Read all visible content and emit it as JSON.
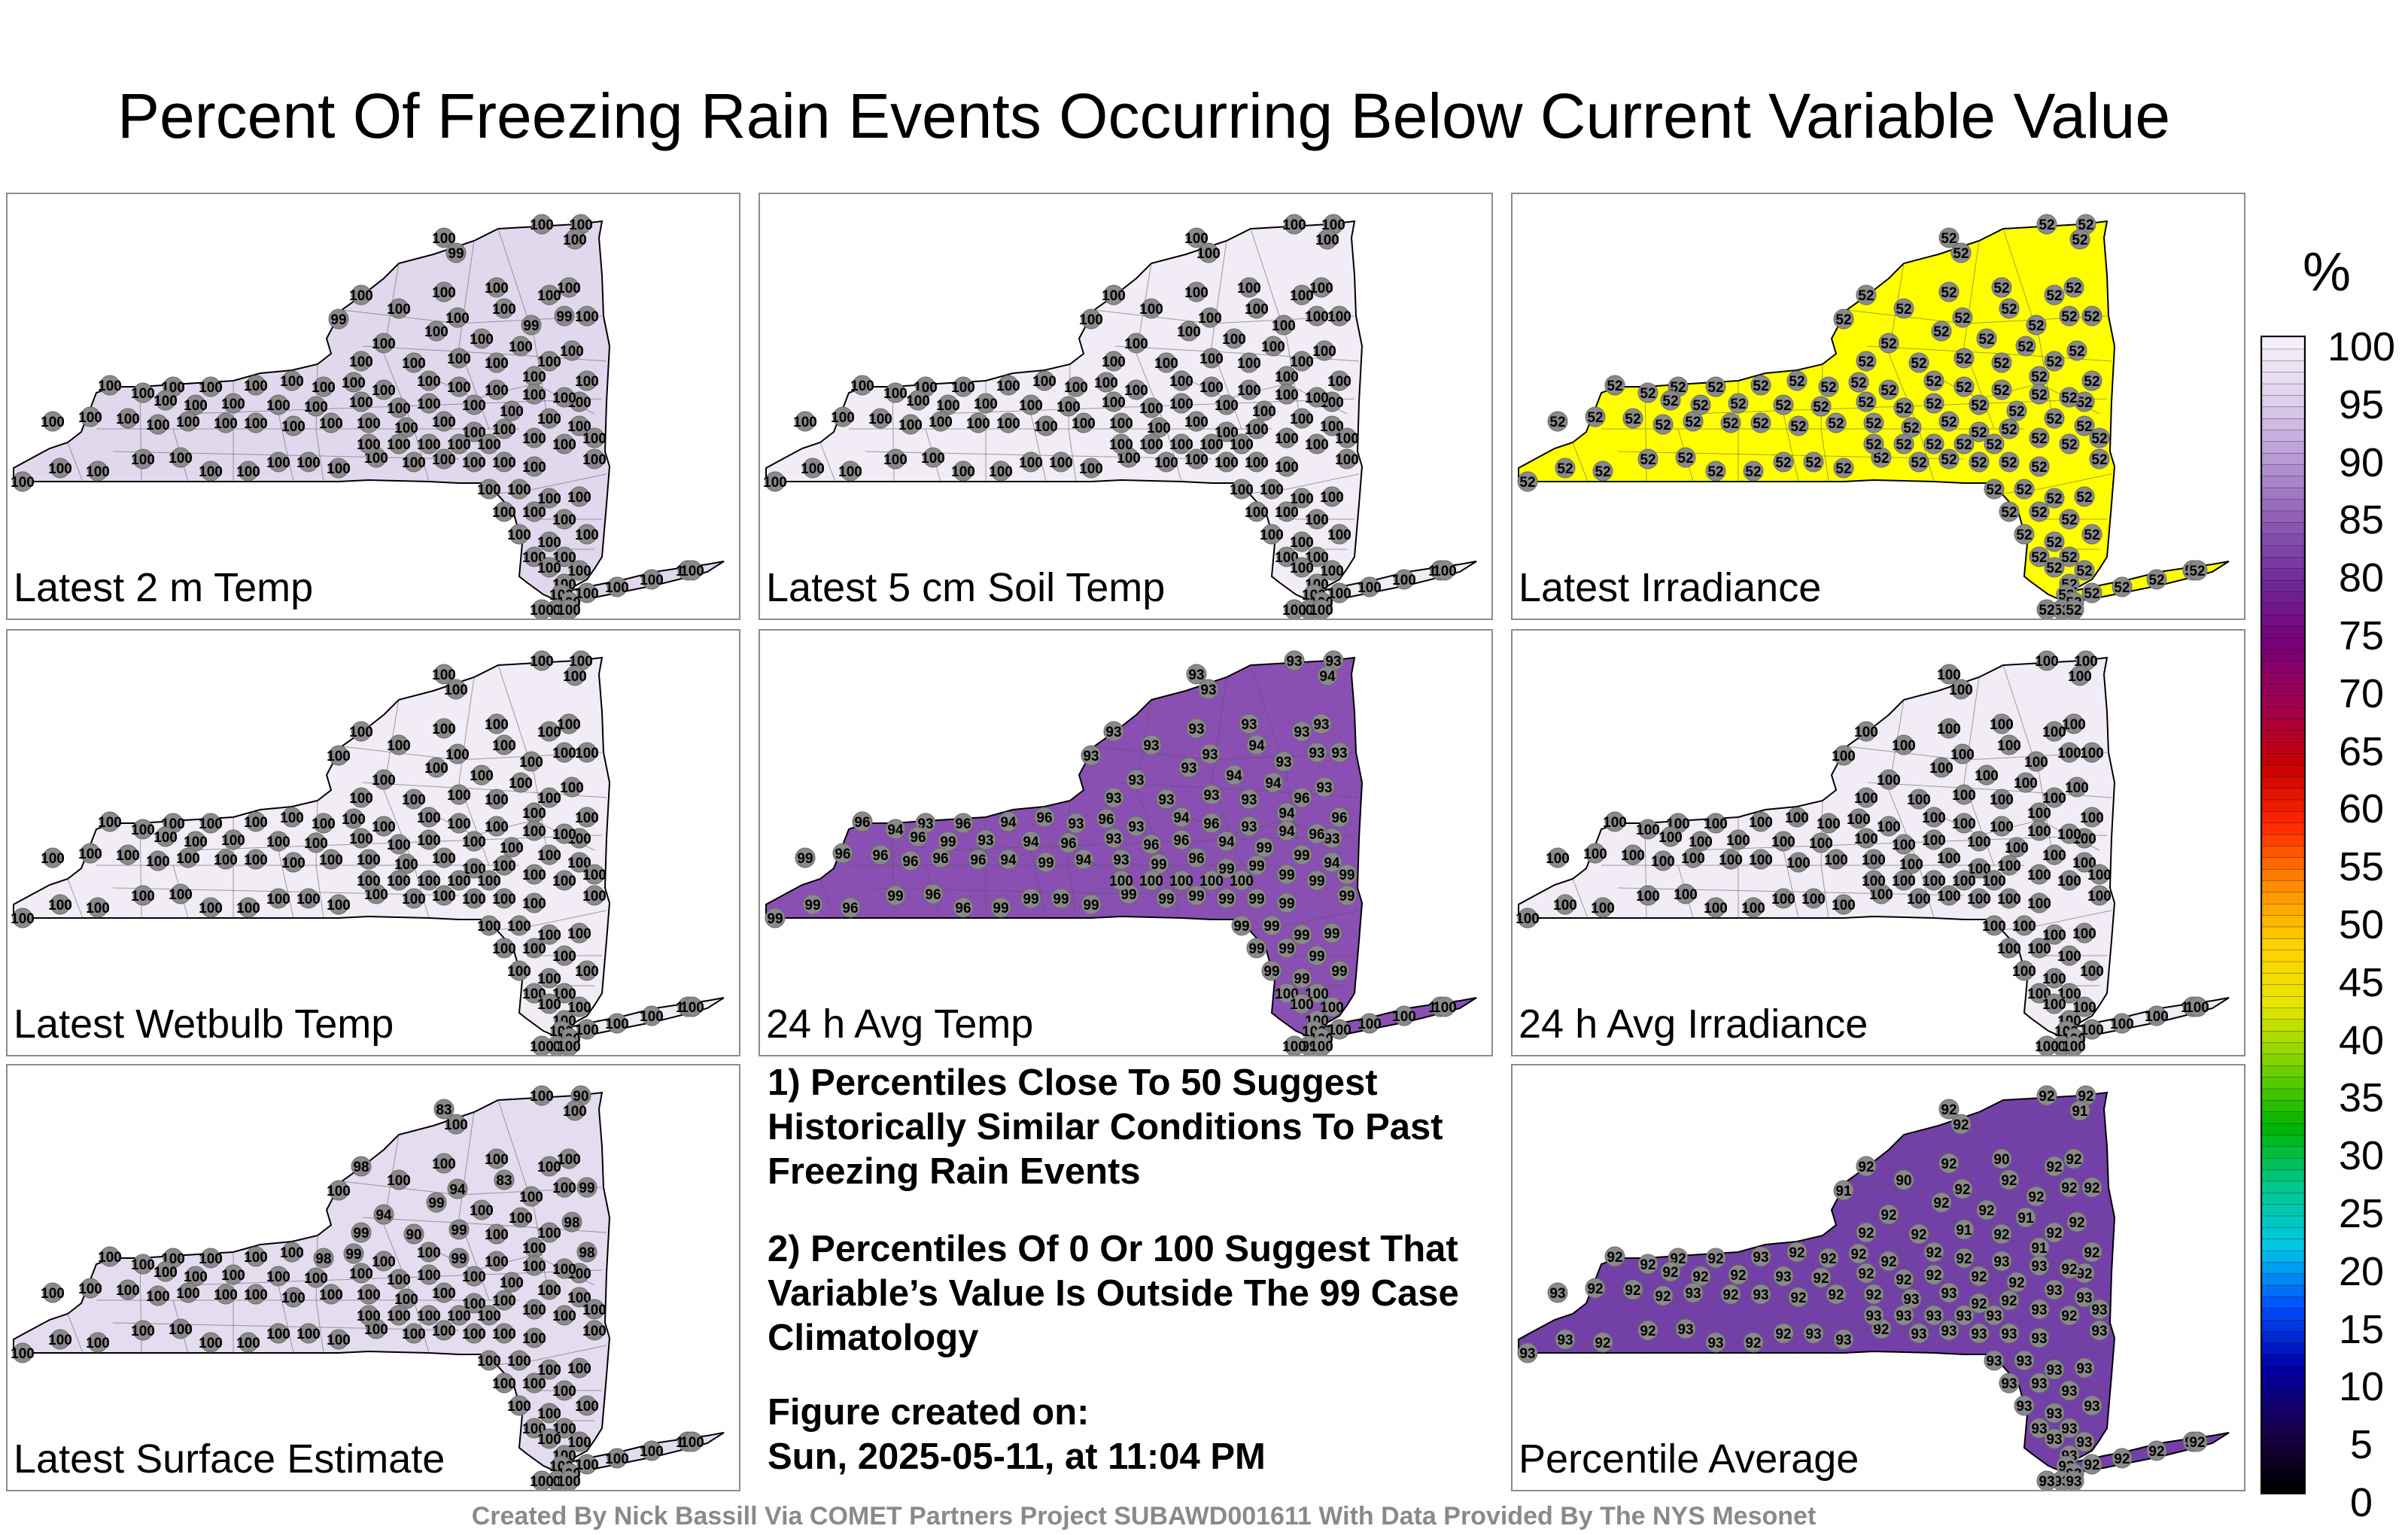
{
  "title": "Percent Of Freezing Rain Events Occurring Below Current Variable Value",
  "panels": [
    {
      "label": "Latest 2 m Temp",
      "fill": "#e2d8ee",
      "values": [
        "100",
        "100",
        "100",
        "100",
        "99",
        "100",
        "100",
        "100",
        "100",
        "100",
        "100",
        "99",
        "100",
        "100",
        "99",
        "99",
        "100",
        "100",
        "100",
        "100",
        "100",
        "100",
        "100",
        "100",
        "100",
        "100",
        "100",
        "100",
        "100",
        "100",
        "100",
        "100",
        "100",
        "100",
        "100",
        "100",
        "100",
        "100",
        "100",
        "100",
        "100",
        "100",
        "100",
        "100",
        "100",
        "100",
        "100",
        "100",
        "100",
        "100",
        "100",
        "100",
        "100",
        "100",
        "100",
        "100",
        "100",
        "100",
        "100",
        "100",
        "100",
        "100",
        "100",
        "100",
        "100",
        "100",
        "100",
        "100",
        "100",
        "100",
        "100",
        "100",
        "100",
        "100",
        "100",
        "100",
        "100",
        "100",
        "100",
        "100",
        "100",
        "100",
        "100",
        "100",
        "100",
        "100",
        "100",
        "100",
        "100",
        "100",
        "100",
        "100",
        "100",
        "100",
        "100",
        "100",
        "100",
        "100",
        "100",
        "100",
        "100",
        "100",
        "100",
        "100",
        "100",
        "100",
        "100",
        "100",
        "100",
        "100",
        "100",
        "100",
        "100",
        "100",
        "100",
        "100",
        "100",
        "100",
        "100",
        "100"
      ]
    },
    {
      "label": "Latest 5 cm Soil Temp",
      "fill": "#f1ecf6",
      "values": [
        "100",
        "100",
        "100",
        "100",
        "100",
        "100",
        "100",
        "100",
        "100",
        "100",
        "100",
        "100",
        "100",
        "100",
        "100",
        "100",
        "100",
        "100",
        "100",
        "100",
        "100",
        "100",
        "100",
        "100",
        "100",
        "100",
        "100",
        "100",
        "100",
        "100",
        "100",
        "100",
        "100",
        "100",
        "100",
        "100",
        "100",
        "100",
        "100",
        "100",
        "100",
        "100",
        "100",
        "100",
        "100",
        "100",
        "100",
        "100",
        "100",
        "100",
        "100",
        "100",
        "100",
        "100",
        "100",
        "100",
        "100",
        "100",
        "100",
        "100",
        "100",
        "100",
        "100",
        "100",
        "100",
        "100",
        "100",
        "100",
        "100",
        "100",
        "100",
        "100",
        "100",
        "100",
        "100",
        "100",
        "100",
        "100",
        "100",
        "100",
        "100",
        "100",
        "100",
        "100",
        "100",
        "100",
        "100",
        "100",
        "100",
        "100",
        "100",
        "100",
        "100",
        "100",
        "100",
        "100",
        "100",
        "100",
        "100",
        "100",
        "100",
        "100",
        "100",
        "100",
        "100",
        "100",
        "100",
        "100",
        "100",
        "100",
        "100",
        "100",
        "100",
        "100",
        "100",
        "100",
        "100",
        "100",
        "100",
        "100"
      ]
    },
    {
      "label": "Latest Irradiance",
      "fill": "#ffff00",
      "values": [
        "52",
        "52",
        "52",
        "52",
        "52",
        "52",
        "52",
        "52",
        "52",
        "52",
        "52",
        "52",
        "52",
        "52",
        "52",
        "52",
        "52",
        "52",
        "52",
        "52",
        "52",
        "52",
        "52",
        "52",
        "52",
        "52",
        "52",
        "52",
        "52",
        "52",
        "52",
        "52",
        "52",
        "52",
        "52",
        "52",
        "52",
        "52",
        "52",
        "52",
        "52",
        "52",
        "52",
        "52",
        "52",
        "52",
        "52",
        "52",
        "52",
        "52",
        "52",
        "52",
        "52",
        "52",
        "52",
        "52",
        "52",
        "52",
        "52",
        "52",
        "52",
        "52",
        "52",
        "52",
        "52",
        "52",
        "52",
        "52",
        "52",
        "52",
        "52",
        "52",
        "52",
        "52",
        "52",
        "52",
        "52",
        "52",
        "52",
        "52",
        "52",
        "52",
        "52",
        "52",
        "52",
        "52",
        "52",
        "52",
        "52",
        "52",
        "52",
        "52",
        "52",
        "52",
        "52",
        "52",
        "52",
        "52",
        "52",
        "52",
        "52",
        "52",
        "52",
        "52",
        "52",
        "52",
        "52",
        "52",
        "52",
        "52",
        "52",
        "52",
        "52",
        "52",
        "52",
        "52",
        "52",
        "52",
        "52",
        "52"
      ]
    },
    {
      "label": "Latest Wetbulb Temp",
      "fill": "#f1ecf6",
      "values": [
        "100",
        "100",
        "100",
        "100",
        "100",
        "100",
        "100",
        "100",
        "100",
        "100",
        "100",
        "100",
        "100",
        "100",
        "100",
        "100",
        "100",
        "100",
        "100",
        "100",
        "100",
        "100",
        "100",
        "100",
        "100",
        "100",
        "100",
        "100",
        "100",
        "100",
        "100",
        "100",
        "100",
        "100",
        "100",
        "100",
        "100",
        "100",
        "100",
        "100",
        "100",
        "100",
        "100",
        "100",
        "100",
        "100",
        "100",
        "100",
        "100",
        "100",
        "100",
        "100",
        "100",
        "100",
        "100",
        "100",
        "100",
        "100",
        "100",
        "100",
        "100",
        "100",
        "100",
        "100",
        "100",
        "100",
        "100",
        "100",
        "100",
        "100",
        "100",
        "100",
        "100",
        "100",
        "100",
        "100",
        "100",
        "100",
        "100",
        "100",
        "100",
        "100",
        "100",
        "100",
        "100",
        "100",
        "100",
        "100",
        "100",
        "100",
        "100",
        "100",
        "100",
        "100",
        "100",
        "100",
        "100",
        "100",
        "100",
        "100",
        "100",
        "100",
        "100",
        "100",
        "100",
        "100",
        "100",
        "100",
        "100",
        "100",
        "100",
        "100",
        "100",
        "100",
        "100",
        "100",
        "100",
        "100",
        "100",
        "100"
      ]
    },
    {
      "label": "24 h Avg Temp",
      "fill": "#8a4fb3",
      "values": [
        "93",
        "93",
        "94",
        "93",
        "93",
        "93",
        "93",
        "93",
        "94",
        "93",
        "93",
        "93",
        "93",
        "93",
        "93",
        "93",
        "94",
        "93",
        "93",
        "94",
        "96",
        "93",
        "93",
        "93",
        "93",
        "93",
        "93",
        "94",
        "96",
        "93",
        "96",
        "94",
        "93",
        "96",
        "94",
        "96",
        "93",
        "96",
        "93",
        "94",
        "96",
        "93",
        "94",
        "96",
        "96",
        "99",
        "93",
        "94",
        "96",
        "93",
        "96",
        "96",
        "94",
        "99",
        "99",
        "94",
        "99",
        "96",
        "96",
        "96",
        "96",
        "96",
        "94",
        "99",
        "94",
        "93",
        "99",
        "96",
        "99",
        "99",
        "99",
        "99",
        "99",
        "99",
        "99",
        "99",
        "96",
        "99",
        "96",
        "96",
        "99",
        "99",
        "99",
        "99",
        "99",
        "99",
        "99",
        "99",
        "99",
        "99",
        "99",
        "99",
        "99",
        "99",
        "99",
        "99",
        "99",
        "99",
        "99",
        "99",
        "100",
        "100",
        "100",
        "100",
        "100",
        "100",
        "100",
        "99",
        "100",
        "100",
        "100",
        "100",
        "100",
        "100",
        "100",
        "100",
        "100",
        "100",
        "100",
        "100"
      ]
    },
    {
      "label": "24 h Avg Irradiance",
      "fill": "#f1ecf6",
      "values": [
        "100",
        "100",
        "100",
        "100",
        "100",
        "100",
        "100",
        "100",
        "100",
        "100",
        "100",
        "100",
        "100",
        "100",
        "100",
        "100",
        "100",
        "100",
        "100",
        "100",
        "100",
        "100",
        "100",
        "100",
        "100",
        "100",
        "100",
        "100",
        "100",
        "100",
        "100",
        "100",
        "100",
        "100",
        "100",
        "100",
        "100",
        "100",
        "100",
        "100",
        "100",
        "100",
        "100",
        "100",
        "100",
        "100",
        "100",
        "100",
        "100",
        "100",
        "100",
        "100",
        "100",
        "100",
        "100",
        "100",
        "100",
        "100",
        "100",
        "100",
        "100",
        "100",
        "100",
        "100",
        "100",
        "100",
        "100",
        "100",
        "100",
        "100",
        "100",
        "100",
        "100",
        "100",
        "100",
        "100",
        "100",
        "100",
        "100",
        "100",
        "100",
        "100",
        "100",
        "100",
        "100",
        "100",
        "100",
        "100",
        "100",
        "100",
        "100",
        "100",
        "100",
        "100",
        "100",
        "100",
        "100",
        "100",
        "100",
        "100",
        "100",
        "100",
        "100",
        "100",
        "100",
        "100",
        "100",
        "100",
        "100",
        "100",
        "100",
        "100",
        "100",
        "100",
        "100",
        "100",
        "100",
        "100",
        "100",
        "100"
      ]
    },
    {
      "label": "Latest Surface Estimate",
      "fill": "#e5dcf0",
      "values": [
        "100",
        "90",
        "100",
        "83",
        "100",
        "100",
        "100",
        "100",
        "83",
        "100",
        "98",
        "100",
        "100",
        "94",
        "100",
        "100",
        "100",
        "99",
        "99",
        "100",
        "100",
        "98",
        "94",
        "99",
        "90",
        "99",
        "100",
        "100",
        "98",
        "100",
        "100",
        "100",
        "100",
        "100",
        "100",
        "100",
        "98",
        "99",
        "100",
        "100",
        "99",
        "100",
        "100",
        "100",
        "100",
        "100",
        "100",
        "100",
        "100",
        "100",
        "100",
        "100",
        "100",
        "100",
        "100",
        "100",
        "100",
        "100",
        "100",
        "100",
        "100",
        "100",
        "100",
        "100",
        "100",
        "100",
        "100",
        "100",
        "100",
        "100",
        "100",
        "100",
        "100",
        "100",
        "100",
        "100",
        "100",
        "100",
        "100",
        "100",
        "100",
        "100",
        "100",
        "100",
        "100",
        "100",
        "100",
        "100",
        "100",
        "100",
        "100",
        "100",
        "100",
        "100",
        "100",
        "100",
        "100",
        "100",
        "100",
        "100",
        "100",
        "100",
        "100",
        "100",
        "100",
        "100",
        "100",
        "100",
        "100",
        "100",
        "100",
        "100",
        "100",
        "100",
        "100",
        "100",
        "100",
        "100",
        "100",
        "100"
      ]
    },
    {
      "label": "Percentile Average",
      "fill": "#7340a8",
      "values": [
        "92",
        "92",
        "91",
        "92",
        "92",
        "90",
        "92",
        "92",
        "92",
        "92",
        "92",
        "91",
        "90",
        "92",
        "92",
        "92",
        "91",
        "92",
        "92",
        "92",
        "92",
        "92",
        "92",
        "92",
        "92",
        "91",
        "92",
        "91",
        "92",
        "92",
        "92",
        "92",
        "92",
        "92",
        "93",
        "92",
        "92",
        "92",
        "92",
        "92",
        "92",
        "93",
        "93",
        "92",
        "92",
        "92",
        "92",
        "93",
        "92",
        "92",
        "92",
        "92",
        "92",
        "92",
        "93",
        "93",
        "93",
        "92",
        "92",
        "92",
        "93",
        "92",
        "93",
        "92",
        "92",
        "92",
        "93",
        "93",
        "92",
        "92",
        "93",
        "92",
        "93",
        "93",
        "93",
        "93",
        "92",
        "92",
        "93",
        "93",
        "92",
        "92",
        "93",
        "93",
        "92",
        "93",
        "93",
        "93",
        "93",
        "93",
        "93",
        "93",
        "93",
        "93",
        "93",
        "93",
        "93",
        "93",
        "93",
        "93",
        "93",
        "93",
        "93",
        "93",
        "93",
        "92",
        "93",
        "93",
        "93",
        "93",
        "92",
        "92",
        "92",
        "93",
        "92",
        "93",
        "93",
        "93",
        "93",
        "93"
      ]
    }
  ],
  "notes": {
    "note1": "1) Percentiles Close To 50 Suggest Historically Similar Conditions To Past Freezing Rain Events",
    "note2": "2) Percentiles Of 0 Or 100 Suggest That Variable’s Value Is Outside The 99 Case Climatology",
    "created_label": "Figure created on:",
    "created_value": "Sun, 2025-05-11, at 11:04 PM"
  },
  "credit": "Created By Nick Bassill Via COMET Partners Project SUBAWD001611 With Data Provided By The NYS Mesonet",
  "colorbar": {
    "unit": "%",
    "ticks": [
      "100",
      "95",
      "90",
      "85",
      "80",
      "75",
      "70",
      "65",
      "60",
      "55",
      "50",
      "45",
      "40",
      "35",
      "30",
      "25",
      "20",
      "15",
      "10",
      "5",
      "0"
    ],
    "min": 0,
    "max": 100,
    "stops": [
      "#000000",
      "#1a0050",
      "#0000a8",
      "#0050ff",
      "#00c8e6",
      "#00c88c",
      "#00b400",
      "#78d200",
      "#e6e600",
      "#ffd200",
      "#ff8c00",
      "#ff2800",
      "#c80000",
      "#a00050",
      "#780078",
      "#6e2896",
      "#8c5ab4",
      "#b496d2",
      "#dccdeb",
      "#f5f0fa"
    ]
  }
}
